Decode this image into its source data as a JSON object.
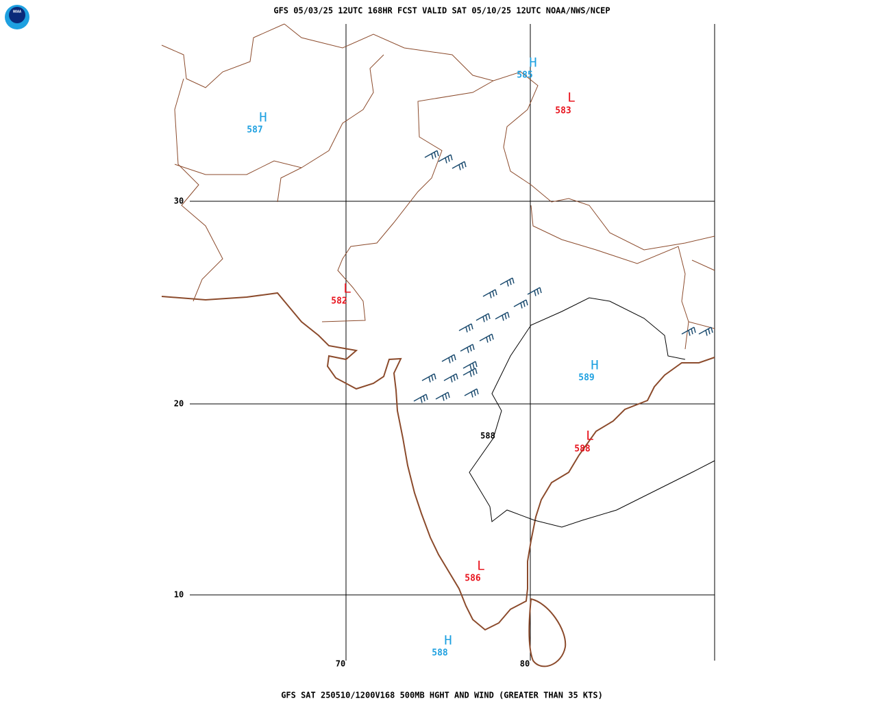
{
  "header": {
    "title": "GFS 05/03/25 12UTC 168HR FCST VALID SAT 05/10/25 12UTC NOAA/NWS/NCEP"
  },
  "footer": {
    "title": "GFS SAT 250510/1200V168 500MB HGHT AND WIND (GREATER THAN 35 KTS)"
  },
  "logo": "NOAA",
  "grid": {
    "lat_labels": [
      30,
      20,
      10
    ],
    "lon_labels": [
      70,
      80
    ]
  },
  "centers": [
    {
      "label": "H",
      "value": 587,
      "color": "#1ea0e0"
    },
    {
      "label": "H",
      "value": 585,
      "color": "#1ea0e0"
    },
    {
      "label": "L",
      "value": 583,
      "color": "#e8141e"
    },
    {
      "label": "L",
      "value": 582,
      "color": "#e8141e"
    },
    {
      "label": "H",
      "value": 589,
      "color": "#1ea0e0"
    },
    {
      "label": "L",
      "value": 588,
      "color": "#e8141e"
    },
    {
      "label": "L",
      "value": 586,
      "color": "#e8141e"
    },
    {
      "label": "H",
      "value": 588,
      "color": "#1ea0e0"
    }
  ],
  "contour_labels": [
    588
  ]
}
